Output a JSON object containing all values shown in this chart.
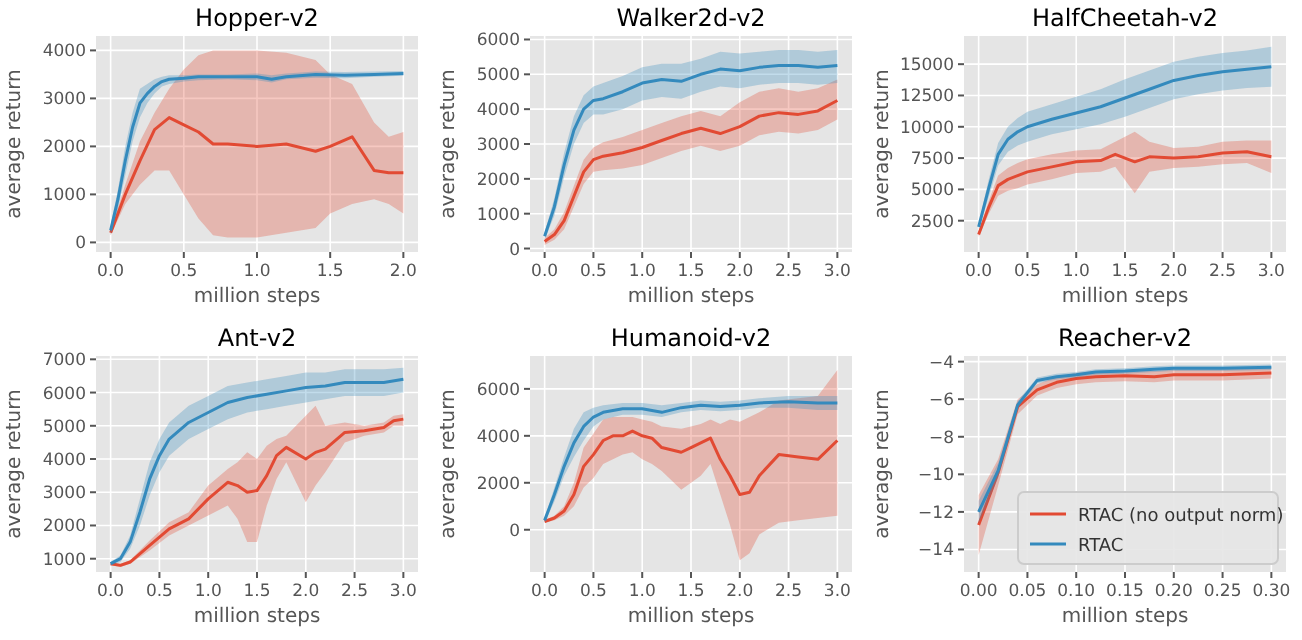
{
  "chart_data": [
    {
      "type": "line",
      "title": "Hopper-v2",
      "xlabel": "million steps",
      "ylabel": "average return",
      "xlim": [
        -0.1,
        2.1
      ],
      "ylim": [
        -200,
        4300
      ],
      "xticks": [
        {
          "value": 0,
          "label": "0.0"
        },
        0.5,
        {
          "value": 1,
          "label": "1.0"
        },
        1.5,
        {
          "value": 2,
          "label": "2.0"
        }
      ],
      "yticks": [
        0,
        1000,
        2000,
        3000,
        4000
      ],
      "grid": true,
      "legend": false,
      "series": [
        {
          "color": "#e24a33",
          "x": [
            0,
            0.1,
            0.2,
            0.3,
            0.4,
            0.5,
            0.6,
            0.7,
            0.8,
            1.0,
            1.2,
            1.4,
            1.5,
            1.65,
            1.8,
            1.9,
            2.0
          ],
          "values": [
            200,
            1000,
            1700,
            2350,
            2600,
            2450,
            2300,
            2050,
            2050,
            2000,
            2050,
            1900,
            2000,
            2200,
            1500,
            1450,
            1450
          ],
          "lower": [
            150,
            800,
            1200,
            1500,
            1500,
            1000,
            500,
            150,
            100,
            100,
            200,
            300,
            600,
            800,
            900,
            800,
            600
          ],
          "upper": [
            250,
            1200,
            2100,
            2700,
            3200,
            3600,
            3900,
            4000,
            4000,
            4000,
            3950,
            3800,
            3500,
            3300,
            2500,
            2200,
            2300
          ]
        },
        {
          "color": "#348abd",
          "x": [
            0,
            0.05,
            0.1,
            0.15,
            0.2,
            0.25,
            0.3,
            0.35,
            0.4,
            0.5,
            0.6,
            0.8,
            1.0,
            1.1,
            1.2,
            1.4,
            1.6,
            1.8,
            2.0
          ],
          "values": [
            250,
            900,
            1700,
            2400,
            2900,
            3100,
            3250,
            3350,
            3400,
            3420,
            3450,
            3450,
            3450,
            3400,
            3450,
            3500,
            3480,
            3500,
            3520
          ],
          "lower": [
            150,
            700,
            1400,
            2100,
            2600,
            2900,
            3100,
            3250,
            3300,
            3350,
            3380,
            3400,
            3380,
            3330,
            3400,
            3430,
            3420,
            3450,
            3470
          ],
          "upper": [
            350,
            1100,
            2000,
            2700,
            3200,
            3300,
            3400,
            3450,
            3480,
            3480,
            3500,
            3500,
            3520,
            3480,
            3520,
            3560,
            3550,
            3560,
            3570
          ]
        }
      ]
    },
    {
      "type": "line",
      "title": "Walker2d-v2",
      "xlabel": "million steps",
      "ylabel": "average return",
      "xlim": [
        -0.15,
        3.15
      ],
      "ylim": [
        -100,
        6100
      ],
      "xticks": [
        {
          "value": 0,
          "label": "0.0"
        },
        0.5,
        {
          "value": 1,
          "label": "1.0"
        },
        1.5,
        {
          "value": 2,
          "label": "2.0"
        },
        2.5,
        {
          "value": 3,
          "label": "3.0"
        }
      ],
      "yticks": [
        0,
        1000,
        2000,
        3000,
        4000,
        5000,
        6000
      ],
      "grid": true,
      "legend": false,
      "series": [
        {
          "color": "#e24a33",
          "x": [
            0,
            0.1,
            0.2,
            0.3,
            0.4,
            0.5,
            0.6,
            0.8,
            1.0,
            1.2,
            1.4,
            1.6,
            1.8,
            2.0,
            2.2,
            2.4,
            2.6,
            2.8,
            3.0
          ],
          "values": [
            200,
            400,
            800,
            1500,
            2200,
            2550,
            2650,
            2750,
            2900,
            3100,
            3300,
            3450,
            3300,
            3500,
            3800,
            3900,
            3850,
            3950,
            4250
          ],
          "lower": [
            100,
            250,
            550,
            1200,
            1850,
            2200,
            2250,
            2300,
            2400,
            2600,
            2800,
            2950,
            2800,
            2950,
            3250,
            3350,
            3300,
            3400,
            3700
          ],
          "upper": [
            300,
            550,
            1050,
            1800,
            2550,
            2900,
            3050,
            3200,
            3400,
            3600,
            3800,
            3950,
            3800,
            4200,
            4500,
            4600,
            4500,
            4600,
            4850
          ]
        },
        {
          "color": "#348abd",
          "x": [
            0,
            0.1,
            0.2,
            0.3,
            0.4,
            0.5,
            0.6,
            0.8,
            1.0,
            1.2,
            1.4,
            1.6,
            1.8,
            2.0,
            2.2,
            2.4,
            2.6,
            2.8,
            3.0
          ],
          "values": [
            350,
            1200,
            2400,
            3400,
            4000,
            4250,
            4300,
            4500,
            4750,
            4850,
            4800,
            5000,
            5150,
            5100,
            5200,
            5250,
            5250,
            5200,
            5250
          ],
          "lower": [
            250,
            950,
            2050,
            3000,
            3600,
            3850,
            3850,
            4000,
            4250,
            4350,
            4300,
            4500,
            4650,
            4600,
            4700,
            4750,
            4750,
            4700,
            4750
          ],
          "upper": [
            450,
            1450,
            2750,
            3800,
            4400,
            4650,
            4750,
            4950,
            5200,
            5300,
            5300,
            5450,
            5650,
            5600,
            5650,
            5700,
            5700,
            5650,
            5700
          ]
        }
      ]
    },
    {
      "type": "line",
      "title": "HalfCheetah-v2",
      "xlabel": "million steps",
      "ylabel": "average return",
      "xlim": [
        -0.15,
        3.15
      ],
      "ylim": [
        0,
        17250
      ],
      "xticks": [
        {
          "value": 0,
          "label": "0.0"
        },
        0.5,
        {
          "value": 1,
          "label": "1.0"
        },
        1.5,
        {
          "value": 2,
          "label": "2.0"
        },
        2.5,
        {
          "value": 3,
          "label": "3.0"
        }
      ],
      "yticks": [
        2500,
        5000,
        7500,
        10000,
        12500,
        15000
      ],
      "grid": true,
      "legend": false,
      "series": [
        {
          "color": "#e24a33",
          "x": [
            0,
            0.1,
            0.2,
            0.3,
            0.4,
            0.5,
            0.75,
            1.0,
            1.25,
            1.4,
            1.6,
            1.75,
            2.0,
            2.25,
            2.5,
            2.75,
            3.0
          ],
          "values": [
            1400,
            3500,
            5300,
            5800,
            6100,
            6400,
            6800,
            7200,
            7300,
            7800,
            7200,
            7600,
            7500,
            7600,
            7900,
            8000,
            7600
          ],
          "lower": [
            1200,
            3000,
            4500,
            4900,
            5100,
            5400,
            5800,
            6300,
            6400,
            6800,
            4700,
            6400,
            6700,
            6800,
            7000,
            7100,
            6300
          ],
          "upper": [
            1600,
            4000,
            6100,
            6700,
            7100,
            7400,
            7800,
            8100,
            8200,
            8800,
            9600,
            8800,
            8300,
            8400,
            8800,
            8900,
            8900
          ]
        },
        {
          "color": "#348abd",
          "x": [
            0,
            0.1,
            0.2,
            0.3,
            0.4,
            0.5,
            0.75,
            1.0,
            1.25,
            1.5,
            1.75,
            2.0,
            2.25,
            2.5,
            2.75,
            3.0
          ],
          "values": [
            2000,
            5000,
            7800,
            9000,
            9600,
            10000,
            10600,
            11100,
            11600,
            12300,
            13000,
            13700,
            14100,
            14400,
            14600,
            14800
          ],
          "lower": [
            1800,
            4300,
            6900,
            8000,
            8500,
            8800,
            9400,
            9800,
            10200,
            10800,
            11500,
            12200,
            12600,
            12900,
            13100,
            13200
          ],
          "upper": [
            2200,
            5700,
            8700,
            10000,
            10700,
            11200,
            11800,
            12400,
            13000,
            13800,
            14500,
            15200,
            15600,
            15900,
            16100,
            16400
          ]
        }
      ]
    },
    {
      "type": "line",
      "title": "Ant-v2",
      "xlabel": "million steps",
      "ylabel": "average return",
      "xlim": [
        -0.15,
        3.15
      ],
      "ylim": [
        600,
        7100
      ],
      "xticks": [
        {
          "value": 0,
          "label": "0.0"
        },
        0.5,
        {
          "value": 1,
          "label": "1.0"
        },
        1.5,
        {
          "value": 2,
          "label": "2.0"
        },
        2.5,
        {
          "value": 3,
          "label": "3.0"
        }
      ],
      "yticks": [
        1000,
        2000,
        3000,
        4000,
        5000,
        6000,
        7000
      ],
      "grid": true,
      "legend": false,
      "series": [
        {
          "color": "#e24a33",
          "x": [
            0,
            0.1,
            0.2,
            0.4,
            0.6,
            0.8,
            1.0,
            1.2,
            1.3,
            1.4,
            1.5,
            1.6,
            1.7,
            1.8,
            2.0,
            2.1,
            2.2,
            2.4,
            2.6,
            2.8,
            2.9,
            3.0
          ],
          "values": [
            850,
            800,
            900,
            1400,
            1900,
            2200,
            2800,
            3300,
            3200,
            3000,
            3050,
            3500,
            4100,
            4350,
            4000,
            4200,
            4300,
            4800,
            4850,
            4950,
            5150,
            5200
          ],
          "lower": [
            800,
            750,
            850,
            1250,
            1700,
            2000,
            2300,
            2600,
            2200,
            1500,
            1500,
            2600,
            3400,
            3900,
            2700,
            3200,
            3600,
            4500,
            4700,
            4800,
            5000,
            5000
          ],
          "upper": [
            900,
            850,
            950,
            1550,
            2100,
            2400,
            3200,
            3700,
            3900,
            4200,
            4000,
            4400,
            4600,
            4700,
            5300,
            5600,
            5000,
            5100,
            5000,
            5100,
            5300,
            5350
          ]
        },
        {
          "color": "#348abd",
          "x": [
            0,
            0.1,
            0.2,
            0.3,
            0.4,
            0.5,
            0.6,
            0.8,
            1.0,
            1.2,
            1.4,
            1.6,
            1.8,
            2.0,
            2.2,
            2.4,
            2.6,
            2.8,
            3.0
          ],
          "values": [
            850,
            1000,
            1500,
            2400,
            3400,
            4100,
            4600,
            5100,
            5400,
            5700,
            5850,
            5950,
            6050,
            6150,
            6200,
            6300,
            6300,
            6300,
            6400
          ],
          "lower": [
            800,
            900,
            1300,
            2000,
            2900,
            3600,
            4100,
            4600,
            4900,
            5200,
            5400,
            5500,
            5600,
            5700,
            5800,
            5900,
            5900,
            5900,
            6000
          ],
          "upper": [
            900,
            1100,
            1700,
            2800,
            3900,
            4600,
            5100,
            5600,
            5900,
            6200,
            6300,
            6400,
            6500,
            6600,
            6600,
            6700,
            6700,
            6700,
            6750
          ]
        }
      ]
    },
    {
      "type": "line",
      "title": "Humanoid-v2",
      "xlabel": "million steps",
      "ylabel": "average return",
      "xlim": [
        -0.15,
        3.15
      ],
      "ylim": [
        -1800,
        7400
      ],
      "xticks": [
        {
          "value": 0,
          "label": "0.0"
        },
        0.5,
        {
          "value": 1,
          "label": "1.0"
        },
        1.5,
        {
          "value": 2,
          "label": "2.0"
        },
        2.5,
        {
          "value": 3,
          "label": "3.0"
        }
      ],
      "yticks": [
        0,
        2000,
        4000,
        6000
      ],
      "grid": true,
      "legend": false,
      "series": [
        {
          "color": "#e24a33",
          "x": [
            0,
            0.1,
            0.2,
            0.3,
            0.4,
            0.5,
            0.6,
            0.7,
            0.8,
            0.9,
            1.0,
            1.1,
            1.2,
            1.4,
            1.5,
            1.6,
            1.7,
            1.8,
            1.9,
            2.0,
            2.1,
            2.2,
            2.4,
            2.6,
            2.8,
            3.0
          ],
          "values": [
            350,
            500,
            800,
            1500,
            2700,
            3200,
            3800,
            4000,
            4000,
            4200,
            4000,
            3900,
            3500,
            3300,
            3500,
            3700,
            3900,
            3000,
            2300,
            1500,
            1600,
            2300,
            3200,
            3100,
            3000,
            3800
          ],
          "lower": [
            300,
            400,
            600,
            1000,
            1800,
            2200,
            2800,
            3000,
            3200,
            3300,
            3000,
            2800,
            2500,
            1700,
            2000,
            2300,
            2800,
            1500,
            200,
            -1300,
            -1000,
            -200,
            300,
            400,
            500,
            600
          ],
          "upper": [
            400,
            600,
            1000,
            2000,
            3500,
            4100,
            4700,
            4800,
            4800,
            4800,
            4700,
            4600,
            4400,
            4300,
            4400,
            4500,
            4700,
            4500,
            4700,
            4600,
            4800,
            5000,
            5500,
            5600,
            5700,
            6800
          ]
        },
        {
          "color": "#348abd",
          "x": [
            0,
            0.1,
            0.2,
            0.3,
            0.4,
            0.5,
            0.6,
            0.8,
            1.0,
            1.2,
            1.4,
            1.6,
            1.8,
            2.0,
            2.2,
            2.5,
            2.8,
            3.0
          ],
          "values": [
            400,
            1500,
            2700,
            3700,
            4400,
            4800,
            5000,
            5150,
            5150,
            5000,
            5200,
            5300,
            5250,
            5300,
            5400,
            5450,
            5400,
            5400
          ],
          "lower": [
            300,
            1200,
            2300,
            3100,
            3800,
            4400,
            4700,
            4900,
            4900,
            4800,
            5000,
            5100,
            5050,
            5100,
            5200,
            5200,
            5100,
            5100
          ],
          "upper": [
            500,
            1800,
            3100,
            4300,
            5000,
            5200,
            5300,
            5400,
            5400,
            5300,
            5400,
            5500,
            5450,
            5500,
            5600,
            5700,
            5700,
            5700
          ]
        }
      ]
    },
    {
      "type": "line",
      "title": "Reacher-v2",
      "xlabel": "million steps",
      "ylabel": "average return",
      "xlim": [
        -0.015,
        0.315
      ],
      "ylim": [
        -15.2,
        -3.7
      ],
      "xticks": [
        {
          "value": 0,
          "label": "0.00"
        },
        {
          "value": 0.05,
          "label": "0.05"
        },
        {
          "value": 0.1,
          "label": "0.10"
        },
        {
          "value": 0.15,
          "label": "0.15"
        },
        {
          "value": 0.2,
          "label": "0.20"
        },
        {
          "value": 0.25,
          "label": "0.25"
        },
        {
          "value": 0.3,
          "label": "0.30"
        }
      ],
      "yticks": [
        -14,
        -12,
        -10,
        -8,
        -6,
        -4
      ],
      "grid": true,
      "legend": "bottom right",
      "series": [
        {
          "name": "RTAC (no output norm)",
          "color": "#e24a33",
          "x": [
            0,
            0.02,
            0.04,
            0.06,
            0.08,
            0.1,
            0.12,
            0.15,
            0.18,
            0.2,
            0.25,
            0.3
          ],
          "values": [
            -12.7,
            -9.9,
            -6.4,
            -5.5,
            -5.1,
            -4.9,
            -4.8,
            -4.75,
            -4.8,
            -4.7,
            -4.7,
            -4.6
          ],
          "lower": [
            -14.3,
            -10.6,
            -6.8,
            -5.8,
            -5.4,
            -5.2,
            -5.1,
            -5.05,
            -5.1,
            -5.0,
            -5.0,
            -4.9
          ],
          "upper": [
            -11.1,
            -9.2,
            -6.0,
            -5.2,
            -4.8,
            -4.6,
            -4.5,
            -4.45,
            -4.5,
            -4.4,
            -4.4,
            -4.3
          ]
        },
        {
          "name": "RTAC",
          "color": "#348abd",
          "x": [
            0,
            0.02,
            0.04,
            0.06,
            0.08,
            0.1,
            0.12,
            0.15,
            0.18,
            0.2,
            0.25,
            0.3
          ],
          "values": [
            -12.0,
            -9.8,
            -6.3,
            -5.0,
            -4.8,
            -4.7,
            -4.55,
            -4.5,
            -4.4,
            -4.35,
            -4.35,
            -4.3
          ],
          "lower": [
            -12.6,
            -10.2,
            -6.5,
            -5.15,
            -4.95,
            -4.85,
            -4.7,
            -4.65,
            -4.55,
            -4.5,
            -4.5,
            -4.45
          ],
          "upper": [
            -11.4,
            -9.4,
            -6.1,
            -4.85,
            -4.65,
            -4.55,
            -4.4,
            -4.35,
            -4.25,
            -4.2,
            -4.2,
            -4.15
          ]
        }
      ]
    }
  ]
}
